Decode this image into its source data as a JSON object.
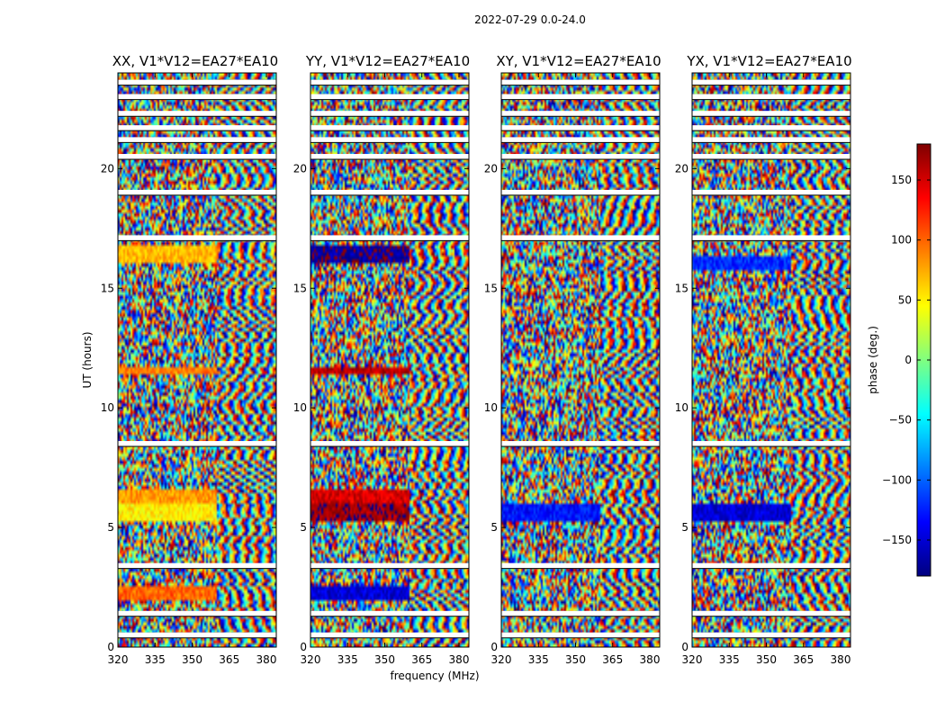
{
  "suptitle": "2022-07-29 0.0-24.0",
  "chart_data": {
    "type": "heatmap",
    "colormap": "jet",
    "panels": [
      {
        "title": "XX, V1*V12=EA27*EA10",
        "pol": "XX"
      },
      {
        "title": "YY, V1*V12=EA27*EA10",
        "pol": "YY"
      },
      {
        "title": "XY, V1*V12=EA27*EA10",
        "pol": "XY"
      },
      {
        "title": "YX, V1*V12=EA27*EA10",
        "pol": "YX"
      }
    ],
    "xlabel": "frequency (MHz)",
    "ylabel": "UT (hours)",
    "xlim": [
      320,
      384
    ],
    "ylim": [
      0,
      24
    ],
    "xticks": [
      320,
      335,
      350,
      365,
      380
    ],
    "yticks": [
      0,
      5,
      10,
      15,
      20
    ],
    "colorbar": {
      "label": "phase (deg.)",
      "range": [
        -180,
        180
      ],
      "ticks": [
        150,
        100,
        50,
        0,
        -50,
        -100,
        -150
      ],
      "tick_labels": [
        "150",
        "100",
        "50",
        "0",
        "−50",
        "−100",
        "−150"
      ]
    },
    "blank_rows_ut": [
      0.5,
      1.4,
      3.4,
      8.5,
      17.1,
      19.0,
      20.5,
      21.2,
      21.7,
      22.3,
      23.0,
      23.6
    ],
    "coherent_bands": {
      "XX": [
        {
          "ut": [
            1.9,
            2.5
          ],
          "phase": 100
        },
        {
          "ut": [
            5.2,
            6.0
          ],
          "phase": 50
        },
        {
          "ut": [
            6.0,
            6.6
          ],
          "phase": 80
        },
        {
          "ut": [
            11.4,
            11.7
          ],
          "phase": 90
        },
        {
          "ut": [
            16.0,
            16.8
          ],
          "phase": 70
        }
      ],
      "YY": [
        {
          "ut": [
            1.9,
            2.5
          ],
          "phase": -150
        },
        {
          "ut": [
            5.2,
            6.0
          ],
          "phase": 170
        },
        {
          "ut": [
            6.0,
            6.6
          ],
          "phase": 150
        },
        {
          "ut": [
            11.4,
            11.7
          ],
          "phase": 160
        },
        {
          "ut": [
            16.0,
            16.8
          ],
          "phase": -170
        }
      ],
      "XY": [
        {
          "ut": [
            5.2,
            6.0
          ],
          "phase": -130
        }
      ],
      "YX": [
        {
          "ut": [
            5.2,
            6.0
          ],
          "phase": -150
        },
        {
          "ut": [
            15.8,
            16.4
          ],
          "phase": -120
        }
      ]
    }
  }
}
